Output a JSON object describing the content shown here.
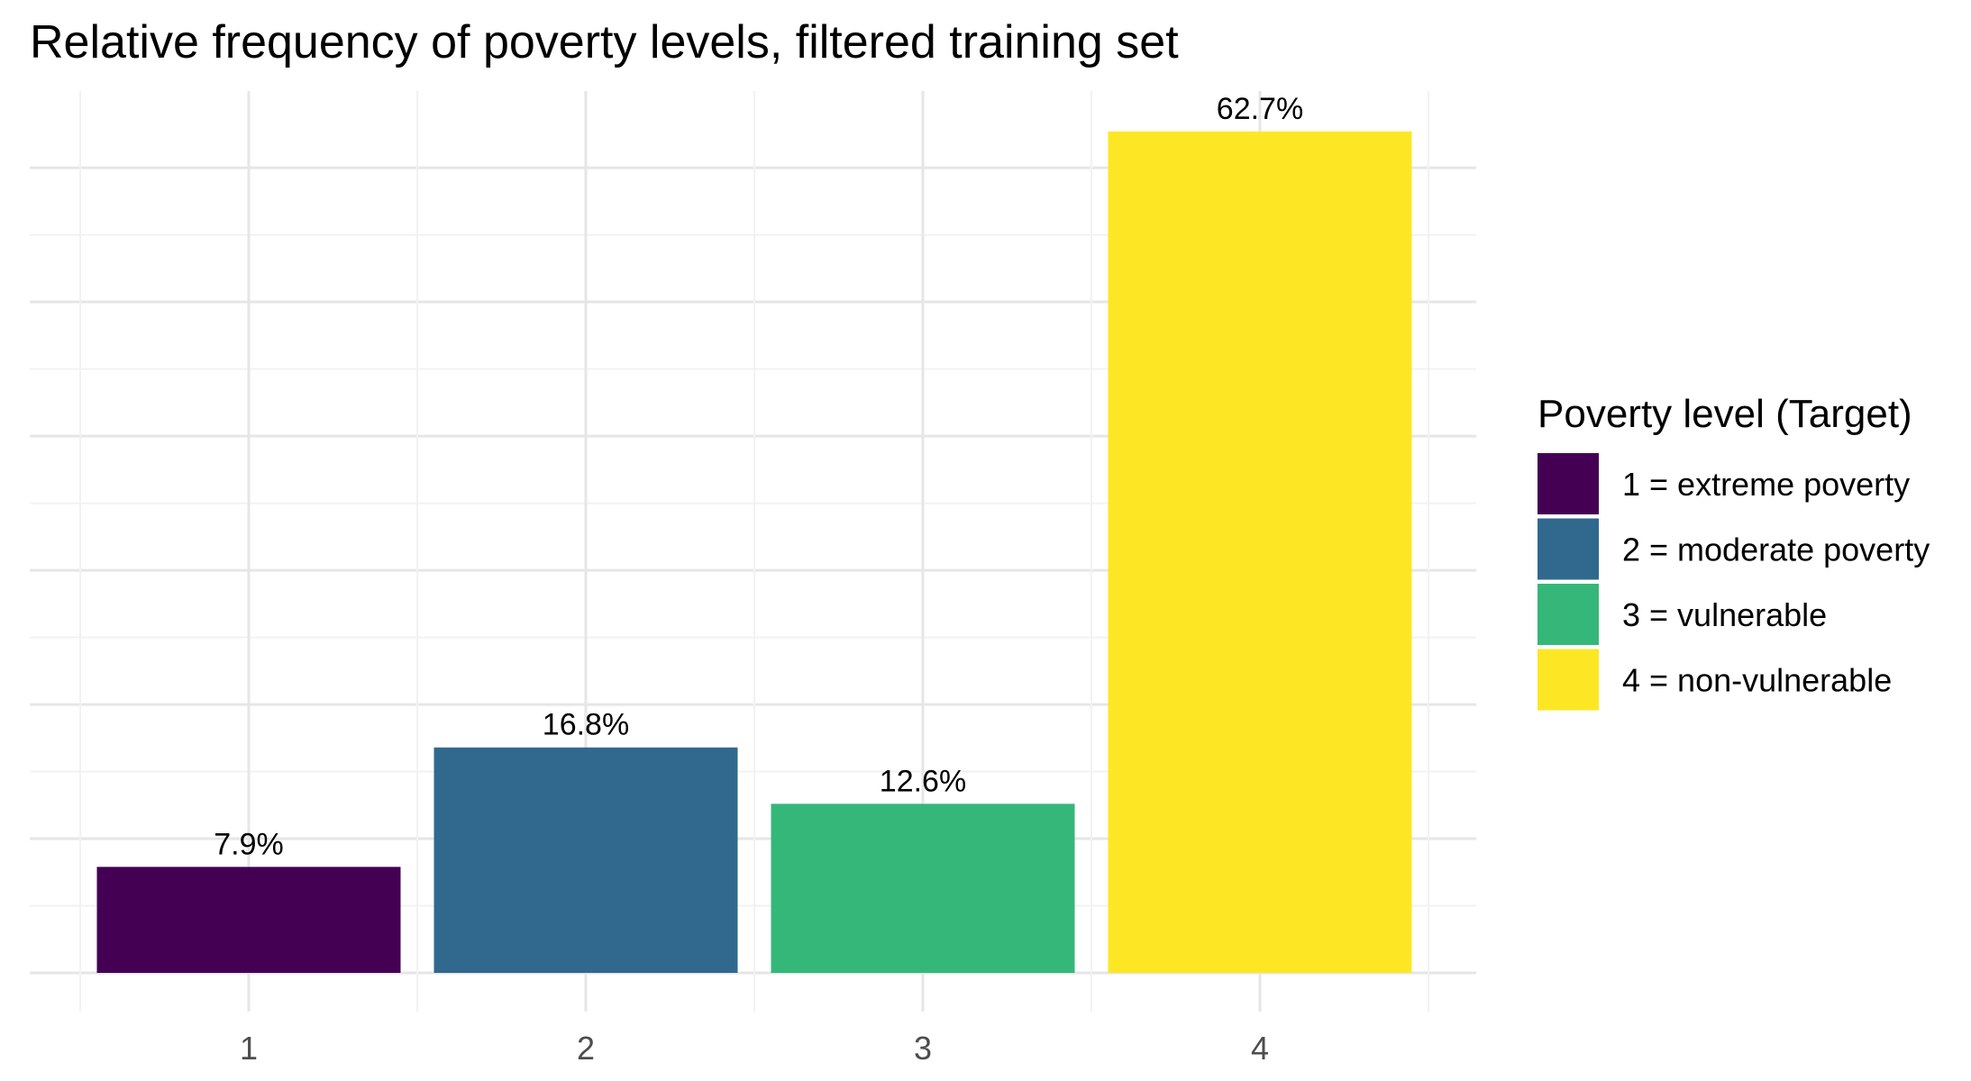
{
  "chart_data": {
    "type": "bar",
    "title": "Relative frequency of poverty levels, filtered training set",
    "xlabel": "",
    "ylabel": "",
    "categories": [
      "1",
      "2",
      "3",
      "4"
    ],
    "values": [
      7.9,
      16.8,
      12.6,
      62.7
    ],
    "data_labels": [
      "7.9%",
      "16.8%",
      "12.6%",
      "62.7%"
    ],
    "colors": [
      "#440154",
      "#31688E",
      "#35B779",
      "#FDE725"
    ],
    "ylim": [
      0,
      65.8
    ],
    "y_gridlines": [
      0,
      10,
      20,
      30,
      40,
      50,
      60
    ],
    "y_tick_labels_shown": false,
    "grid": true,
    "legend": {
      "title": "Poverty level (Target)",
      "position": "right",
      "entries": [
        "1 = extreme poverty",
        "2 = moderate poverty",
        "3 = vulnerable",
        "4 = non-vulnerable"
      ]
    }
  }
}
